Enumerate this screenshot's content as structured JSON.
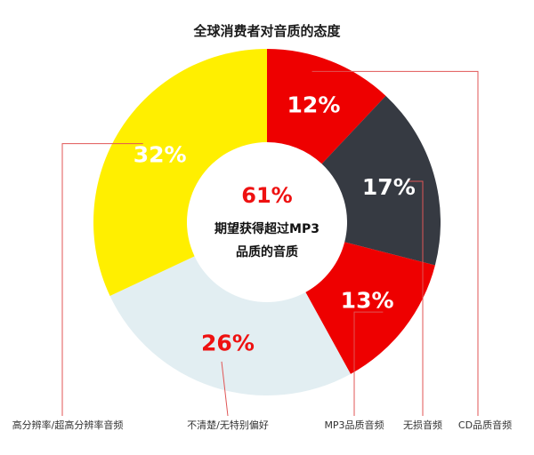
{
  "chart_data": {
    "type": "pie",
    "title": "全球消费者对音质的态度",
    "donut": true,
    "slices": [
      {
        "label": "CD品质音频",
        "value": 12,
        "display": "12%",
        "color": "#ee0000",
        "text_color": "#ffffff"
      },
      {
        "label": "无损音频",
        "value": 17,
        "display": "17%",
        "color": "#363a42",
        "text_color": "#ffffff"
      },
      {
        "label": "MP3品质音频",
        "value": 13,
        "display": "13%",
        "color": "#ee0000",
        "text_color": "#ffffff"
      },
      {
        "label": "不清楚/无特别偏好",
        "value": 26,
        "display": "26%",
        "color": "#e2eef2",
        "text_color": "#ee1111"
      },
      {
        "label": "高分辨率/超高分辨率音频",
        "value": 32,
        "display": "32%",
        "color": "#ffef00",
        "text_color": "#ffffff"
      }
    ],
    "center": {
      "value": "61%",
      "line1": "期望获得超过MP3",
      "line2": "品质的音质"
    }
  }
}
